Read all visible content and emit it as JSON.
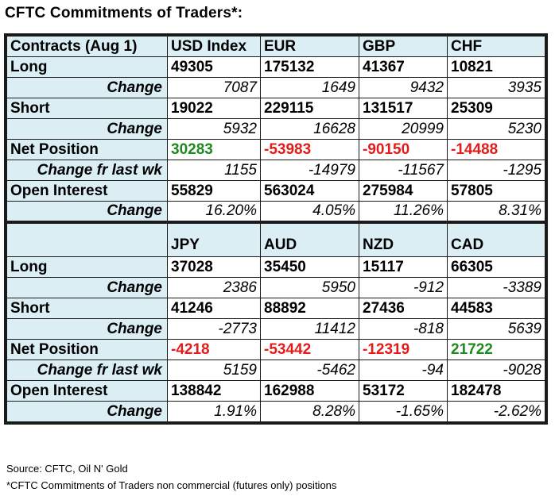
{
  "title": "CFTC Commitments of Traders*:",
  "labels": {
    "header": "Contracts (Aug 1)",
    "long": "Long",
    "change": "Change",
    "short": "Short",
    "net": "Net Position",
    "change_wk": "Change fr last wk",
    "oi": "Open Interest"
  },
  "blocks": [
    {
      "currencies": [
        "USD Index",
        "EUR",
        "GBP",
        "CHF"
      ],
      "long": [
        "49305",
        "175132",
        "41367",
        "10821"
      ],
      "long_change": [
        "7087",
        "1649",
        "9432",
        "3935"
      ],
      "short": [
        "19022",
        "229115",
        "131517",
        "25309"
      ],
      "short_change": [
        "5932",
        "16628",
        "20999",
        "5230"
      ],
      "net": [
        "30283",
        "-53983",
        "-90150",
        "-14488"
      ],
      "net_change": [
        "1155",
        "-14979",
        "-11567",
        "-1295"
      ],
      "oi": [
        "55829",
        "563024",
        "275984",
        "57805"
      ],
      "oi_change": [
        "16.20%",
        "4.05%",
        "11.26%",
        "8.31%"
      ]
    },
    {
      "currencies": [
        "JPY",
        "AUD",
        "NZD",
        "CAD"
      ],
      "long": [
        "37028",
        "35450",
        "15117",
        "66305"
      ],
      "long_change": [
        "2386",
        "5950",
        "-912",
        "-3389"
      ],
      "short": [
        "41246",
        "88892",
        "27436",
        "44583"
      ],
      "short_change": [
        "-2773",
        "11412",
        "-818",
        "5639"
      ],
      "net": [
        "-4218",
        "-53442",
        "-12319",
        "21722"
      ],
      "net_change": [
        "5159",
        "-5462",
        "-94",
        "-9028"
      ],
      "oi": [
        "138842",
        "162988",
        "53172",
        "182478"
      ],
      "oi_change": [
        "1.91%",
        "8.28%",
        "-1.65%",
        "-2.62%"
      ]
    }
  ],
  "colors": {
    "header_bg": "#daeef3",
    "positive": "#1e8a1e",
    "negative": "#e31b1b"
  },
  "footer": {
    "source": "Source: CFTC, Oil N' Gold",
    "note": "*CFTC Commitments of Traders non commercial (futures only) positions"
  }
}
